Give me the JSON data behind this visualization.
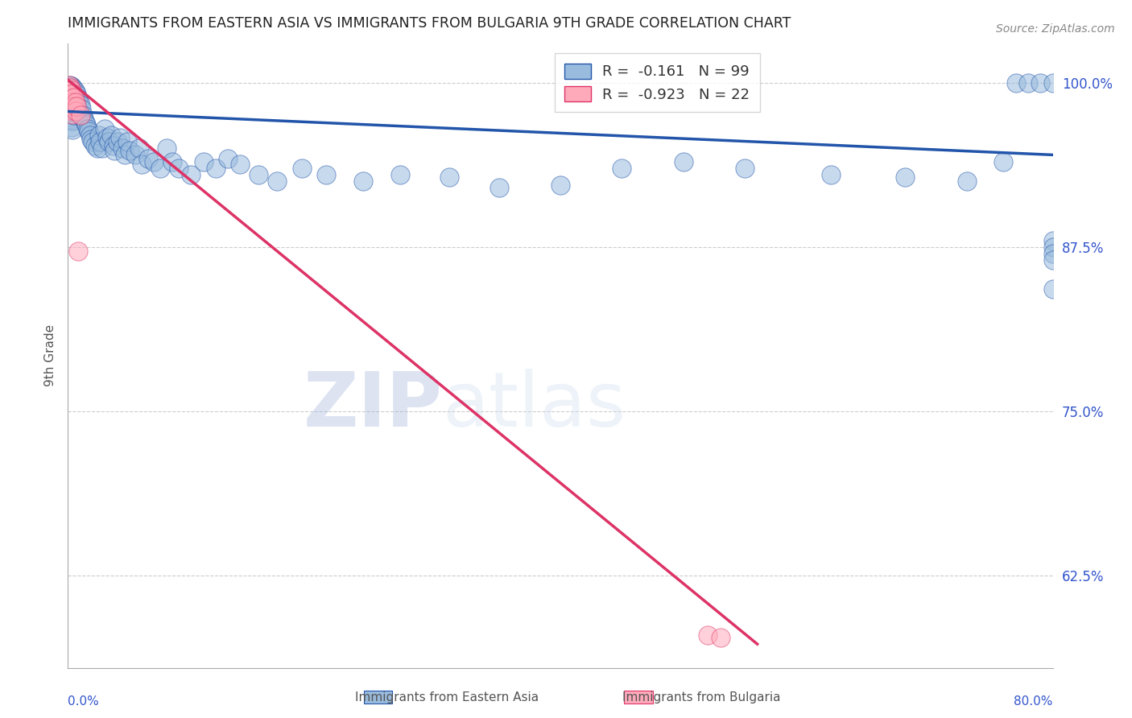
{
  "title": "IMMIGRANTS FROM EASTERN ASIA VS IMMIGRANTS FROM BULGARIA 9TH GRADE CORRELATION CHART",
  "source": "Source: ZipAtlas.com",
  "ylabel": "9th Grade",
  "ytick_labels": [
    "100.0%",
    "87.5%",
    "75.0%",
    "62.5%"
  ],
  "ytick_values": [
    1.0,
    0.875,
    0.75,
    0.625
  ],
  "xlim": [
    0.0,
    0.8
  ],
  "ylim": [
    0.555,
    1.03
  ],
  "legend_r_blue": "-0.161",
  "legend_n_blue": "99",
  "legend_r_pink": "-0.923",
  "legend_n_pink": "22",
  "legend_label_blue": "Immigrants from Eastern Asia",
  "legend_label_pink": "Immigrants from Bulgaria",
  "blue_scatter_x": [
    0.001,
    0.001,
    0.001,
    0.002,
    0.002,
    0.002,
    0.002,
    0.002,
    0.003,
    0.003,
    0.003,
    0.003,
    0.003,
    0.003,
    0.004,
    0.004,
    0.004,
    0.004,
    0.004,
    0.004,
    0.005,
    0.005,
    0.005,
    0.005,
    0.006,
    0.006,
    0.006,
    0.007,
    0.007,
    0.008,
    0.009,
    0.009,
    0.01,
    0.011,
    0.012,
    0.013,
    0.014,
    0.015,
    0.016,
    0.017,
    0.018,
    0.019,
    0.02,
    0.022,
    0.024,
    0.025,
    0.026,
    0.028,
    0.03,
    0.032,
    0.033,
    0.035,
    0.037,
    0.038,
    0.04,
    0.042,
    0.044,
    0.046,
    0.048,
    0.05,
    0.055,
    0.058,
    0.06,
    0.065,
    0.07,
    0.075,
    0.08,
    0.085,
    0.09,
    0.1,
    0.11,
    0.12,
    0.13,
    0.14,
    0.155,
    0.17,
    0.19,
    0.21,
    0.24,
    0.27,
    0.31,
    0.35,
    0.4,
    0.45,
    0.5,
    0.55,
    0.62,
    0.68,
    0.73,
    0.76,
    0.77,
    0.78,
    0.79,
    0.8,
    0.8,
    0.8,
    0.8,
    0.8,
    0.8
  ],
  "blue_scatter_y": [
    0.995,
    0.99,
    0.985,
    0.998,
    0.992,
    0.988,
    0.982,
    0.975,
    0.997,
    0.991,
    0.985,
    0.979,
    0.972,
    0.966,
    0.996,
    0.99,
    0.984,
    0.978,
    0.971,
    0.964,
    0.995,
    0.989,
    0.982,
    0.975,
    0.993,
    0.986,
    0.979,
    0.991,
    0.984,
    0.988,
    0.985,
    0.978,
    0.983,
    0.98,
    0.975,
    0.972,
    0.97,
    0.968,
    0.965,
    0.963,
    0.96,
    0.957,
    0.955,
    0.952,
    0.95,
    0.96,
    0.955,
    0.95,
    0.965,
    0.958,
    0.955,
    0.96,
    0.952,
    0.948,
    0.955,
    0.958,
    0.95,
    0.945,
    0.955,
    0.948,
    0.945,
    0.95,
    0.938,
    0.942,
    0.94,
    0.935,
    0.95,
    0.94,
    0.935,
    0.93,
    0.94,
    0.935,
    0.942,
    0.938,
    0.93,
    0.925,
    0.935,
    0.93,
    0.925,
    0.93,
    0.928,
    0.92,
    0.922,
    0.935,
    0.94,
    0.935,
    0.93,
    0.928,
    0.925,
    0.94,
    1.0,
    1.0,
    1.0,
    1.0,
    0.88,
    0.875,
    0.87,
    0.865,
    0.843
  ],
  "pink_scatter_x": [
    0.001,
    0.001,
    0.001,
    0.002,
    0.002,
    0.002,
    0.002,
    0.003,
    0.003,
    0.003,
    0.003,
    0.004,
    0.004,
    0.005,
    0.005,
    0.006,
    0.006,
    0.007,
    0.008,
    0.01,
    0.52,
    0.53
  ],
  "pink_scatter_y": [
    0.998,
    0.993,
    0.988,
    0.996,
    0.991,
    0.985,
    0.979,
    0.994,
    0.988,
    0.982,
    0.976,
    0.992,
    0.985,
    0.989,
    0.982,
    0.985,
    0.978,
    0.982,
    0.872,
    0.975,
    0.58,
    0.578
  ],
  "blue_line_x": [
    0.0,
    0.8
  ],
  "blue_line_y": [
    0.978,
    0.945
  ],
  "pink_line_x": [
    0.0,
    0.56
  ],
  "pink_line_y": [
    1.002,
    0.573
  ],
  "blue_color": "#99BBDD",
  "pink_color": "#FFAABB",
  "blue_line_color": "#2255AA",
  "pink_line_color": "#DD3366",
  "watermark_zip": "ZIP",
  "watermark_atlas": "atlas",
  "grid_color": "#CCCCCC",
  "title_color": "#222222",
  "axis_label_color": "#3355CC",
  "right_tick_color": "#3355CC",
  "bottom_label_color": "#555555"
}
